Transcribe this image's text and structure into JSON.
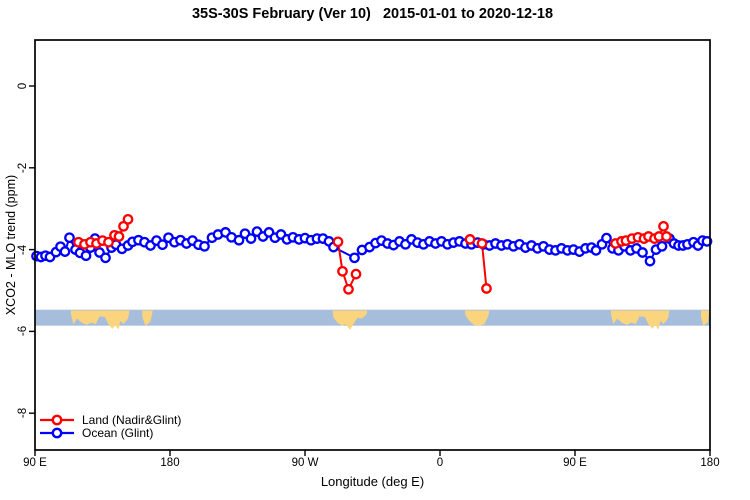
{
  "chart_data": {
    "type": "line",
    "title": "35S-30S February (Ver 10)   2015-01-01 to 2020-12-18",
    "xlabel": "Longitude (deg E)",
    "ylabel": "XCO2 - MLO trend (ppm)",
    "x_range": [
      90,
      540
    ],
    "y_range": [
      -8.9,
      1.125
    ],
    "grid": false,
    "marker": "open-circle",
    "x_ticks": [
      {
        "value": 90,
        "label": "90 E"
      },
      {
        "value": 180,
        "label": "180"
      },
      {
        "value": 270,
        "label": "90 W"
      },
      {
        "value": 360,
        "label": "0"
      },
      {
        "value": 450,
        "label": "90 E"
      },
      {
        "value": 540,
        "label": "180"
      }
    ],
    "y_ticks": [
      {
        "value": 0,
        "label": "0"
      },
      {
        "value": -2,
        "label": "-2"
      },
      {
        "value": -4,
        "label": "-4"
      },
      {
        "value": -6,
        "label": "-6"
      },
      {
        "value": -8,
        "label": "-8"
      }
    ],
    "legend_position": "bottom-left",
    "series": [
      {
        "name": "Land (Nadir&Glint)",
        "color": "#FF0000",
        "segments": [
          [
            [
              119,
              -3.82
            ],
            [
              123,
              -3.87
            ],
            [
              127,
              -3.82
            ],
            [
              131,
              -3.85
            ],
            [
              135,
              -3.78
            ],
            [
              139,
              -3.82
            ],
            [
              143,
              -3.65
            ],
            [
              146,
              -3.68
            ],
            [
              149,
              -3.43
            ],
            [
              152,
              -3.26
            ]
          ],
          [
            [
              292,
              -3.81
            ],
            [
              295,
              -4.53
            ],
            [
              299,
              -4.97
            ],
            [
              304,
              -4.6
            ]
          ],
          [
            [
              380,
              -3.75
            ],
            [
              388,
              -3.85
            ],
            [
              391,
              -4.95
            ]
          ],
          [
            [
              477,
              -3.85
            ],
            [
              481,
              -3.8
            ],
            [
              484,
              -3.78
            ],
            [
              488,
              -3.73
            ],
            [
              492,
              -3.7
            ],
            [
              496,
              -3.73
            ],
            [
              499,
              -3.68
            ],
            [
              503,
              -3.73
            ],
            [
              506,
              -3.68
            ],
            [
              509,
              -3.43
            ],
            [
              511,
              -3.68
            ]
          ]
        ]
      },
      {
        "name": "Ocean (Glint)",
        "color": "#0000FF",
        "segments": [
          [
            [
              91,
              -4.16
            ],
            [
              94,
              -4.18
            ],
            [
              97,
              -4.15
            ],
            [
              100,
              -4.18
            ],
            [
              104,
              -4.06
            ],
            [
              107,
              -3.93
            ],
            [
              110,
              -4.05
            ],
            [
              113,
              -3.71
            ],
            [
              117,
              -4.0
            ],
            [
              120,
              -4.08
            ],
            [
              124,
              -4.15
            ],
            [
              127,
              -3.95
            ],
            [
              130,
              -3.73
            ],
            [
              133,
              -4.07
            ],
            [
              137,
              -4.2
            ],
            [
              141,
              -3.95
            ],
            [
              144,
              -3.88
            ],
            [
              148,
              -3.98
            ],
            [
              152,
              -3.9
            ],
            [
              155,
              -3.81
            ],
            [
              159,
              -3.77
            ],
            [
              163,
              -3.82
            ],
            [
              167,
              -3.9
            ],
            [
              171,
              -3.78
            ],
            [
              175,
              -3.88
            ],
            [
              179,
              -3.71
            ],
            [
              183,
              -3.82
            ],
            [
              187,
              -3.77
            ],
            [
              191,
              -3.85
            ],
            [
              195,
              -3.78
            ],
            [
              199,
              -3.88
            ],
            [
              203,
              -3.92
            ],
            [
              208,
              -3.71
            ],
            [
              212,
              -3.63
            ],
            [
              217,
              -3.58
            ],
            [
              221,
              -3.7
            ],
            [
              226,
              -3.77
            ],
            [
              230,
              -3.61
            ],
            [
              234,
              -3.73
            ],
            [
              238,
              -3.56
            ],
            [
              242,
              -3.68
            ],
            [
              246,
              -3.58
            ],
            [
              250,
              -3.71
            ],
            [
              254,
              -3.63
            ],
            [
              258,
              -3.75
            ],
            [
              262,
              -3.7
            ],
            [
              266,
              -3.75
            ],
            [
              270,
              -3.72
            ],
            [
              274,
              -3.77
            ],
            [
              278,
              -3.73
            ],
            [
              282,
              -3.73
            ],
            [
              286,
              -3.8
            ],
            [
              289,
              -3.94
            ],
            [
              303,
              -4.2
            ],
            [
              308,
              -4.01
            ],
            [
              313,
              -3.94
            ],
            [
              317,
              -3.84
            ],
            [
              321,
              -3.78
            ],
            [
              325,
              -3.85
            ],
            [
              329,
              -3.89
            ],
            [
              333,
              -3.8
            ],
            [
              337,
              -3.87
            ],
            [
              341,
              -3.75
            ],
            [
              345,
              -3.83
            ],
            [
              349,
              -3.87
            ],
            [
              353,
              -3.8
            ],
            [
              357,
              -3.85
            ],
            [
              361,
              -3.8
            ],
            [
              365,
              -3.87
            ],
            [
              369,
              -3.83
            ],
            [
              373,
              -3.8
            ],
            [
              377,
              -3.85
            ],
            [
              381,
              -3.87
            ],
            [
              385,
              -3.83
            ],
            [
              389,
              -3.87
            ],
            [
              393,
              -3.9
            ],
            [
              397,
              -3.85
            ],
            [
              401,
              -3.9
            ],
            [
              405,
              -3.87
            ],
            [
              409,
              -3.92
            ],
            [
              413,
              -3.87
            ],
            [
              417,
              -3.95
            ],
            [
              421,
              -3.9
            ],
            [
              425,
              -3.97
            ],
            [
              429,
              -3.92
            ],
            [
              433,
              -4.0
            ],
            [
              437,
              -4.02
            ],
            [
              441,
              -3.97
            ],
            [
              445,
              -4.02
            ],
            [
              449,
              -4.0
            ],
            [
              453,
              -4.05
            ],
            [
              457,
              -3.97
            ],
            [
              461,
              -3.95
            ],
            [
              464,
              -4.02
            ],
            [
              468,
              -3.87
            ],
            [
              471,
              -3.72
            ],
            [
              475,
              -3.97
            ],
            [
              479,
              -4.02
            ],
            [
              483,
              -3.92
            ],
            [
              487,
              -4.02
            ],
            [
              491,
              -3.97
            ],
            [
              495,
              -4.07
            ],
            [
              500,
              -4.28
            ],
            [
              504,
              -4.0
            ],
            [
              508,
              -3.92
            ],
            [
              513,
              -3.73
            ],
            [
              516,
              -3.85
            ],
            [
              519,
              -3.9
            ],
            [
              522,
              -3.9
            ],
            [
              525,
              -3.87
            ],
            [
              529,
              -3.82
            ],
            [
              532,
              -3.9
            ],
            [
              535,
              -3.78
            ],
            [
              538,
              -3.8
            ]
          ]
        ]
      }
    ],
    "map_band": {
      "description": "land-ocean strip for 35S-30S latitude band",
      "y_top": -5.47,
      "y_bottom": -5.86,
      "ocean_color": "#A6BDDB",
      "land_color": "#FBD47E",
      "land_patches": [
        {
          "name": "australia",
          "points": [
            [
              114,
              0.05
            ],
            [
              153,
              0.05
            ],
            [
              152,
              0.55
            ],
            [
              149,
              0.9
            ],
            [
              147,
              0.7
            ],
            [
              145.5,
              1.25
            ],
            [
              143.5,
              0.95
            ],
            [
              141.5,
              1.2
            ],
            [
              139,
              0.9
            ],
            [
              136.5,
              0.45
            ],
            [
              133,
              0.42
            ],
            [
              130.5,
              0.9
            ],
            [
              127.5,
              0.8
            ],
            [
              124.5,
              0.95
            ],
            [
              121,
              0.8
            ],
            [
              118,
              0.55
            ],
            [
              115.5,
              0.9
            ],
            [
              114,
              0.3
            ]
          ]
        },
        {
          "name": "new-zealand",
          "points": [
            [
              161.5,
              0.05
            ],
            [
              168.5,
              0.05
            ],
            [
              167,
              0.75
            ],
            [
              163.5,
              1.0
            ],
            [
              161.5,
              0.45
            ]
          ]
        },
        {
          "name": "south-america",
          "points": [
            [
              288.5,
              0.05
            ],
            [
              311.5,
              0.05
            ],
            [
              311,
              0.3
            ],
            [
              308,
              0.55
            ],
            [
              305,
              0.5
            ],
            [
              302,
              0.95
            ],
            [
              300,
              1.25
            ],
            [
              297,
              0.9
            ],
            [
              294.5,
              1.0
            ],
            [
              291.5,
              0.8
            ],
            [
              289,
              0.5
            ],
            [
              288.5,
              0.15
            ]
          ]
        },
        {
          "name": "africa",
          "points": [
            [
              376.5,
              0.05
            ],
            [
              393,
              0.05
            ],
            [
              392,
              0.45
            ],
            [
              389.5,
              0.9
            ],
            [
              386,
              1.0
            ],
            [
              382.5,
              0.95
            ],
            [
              379.5,
              0.7
            ],
            [
              377,
              0.35
            ]
          ]
        },
        {
          "name": "australia-wrap",
          "points": [
            [
              474,
              0.05
            ],
            [
              513,
              0.05
            ],
            [
              512,
              0.55
            ],
            [
              509,
              0.9
            ],
            [
              507,
              0.7
            ],
            [
              505.5,
              1.25
            ],
            [
              503.5,
              0.95
            ],
            [
              501.5,
              1.2
            ],
            [
              499,
              0.9
            ],
            [
              496.5,
              0.45
            ],
            [
              493,
              0.42
            ],
            [
              490.5,
              0.9
            ],
            [
              487.5,
              0.8
            ],
            [
              484.5,
              0.95
            ],
            [
              481,
              0.8
            ],
            [
              478,
              0.55
            ],
            [
              475.5,
              0.9
            ],
            [
              474,
              0.3
            ]
          ]
        },
        {
          "name": "new-zealand-wrap",
          "points": [
            [
              534,
              0.05
            ],
            [
              539.5,
              0.05
            ],
            [
              538.5,
              0.8
            ],
            [
              535.5,
              1.0
            ],
            [
              534,
              0.45
            ]
          ]
        }
      ]
    }
  }
}
